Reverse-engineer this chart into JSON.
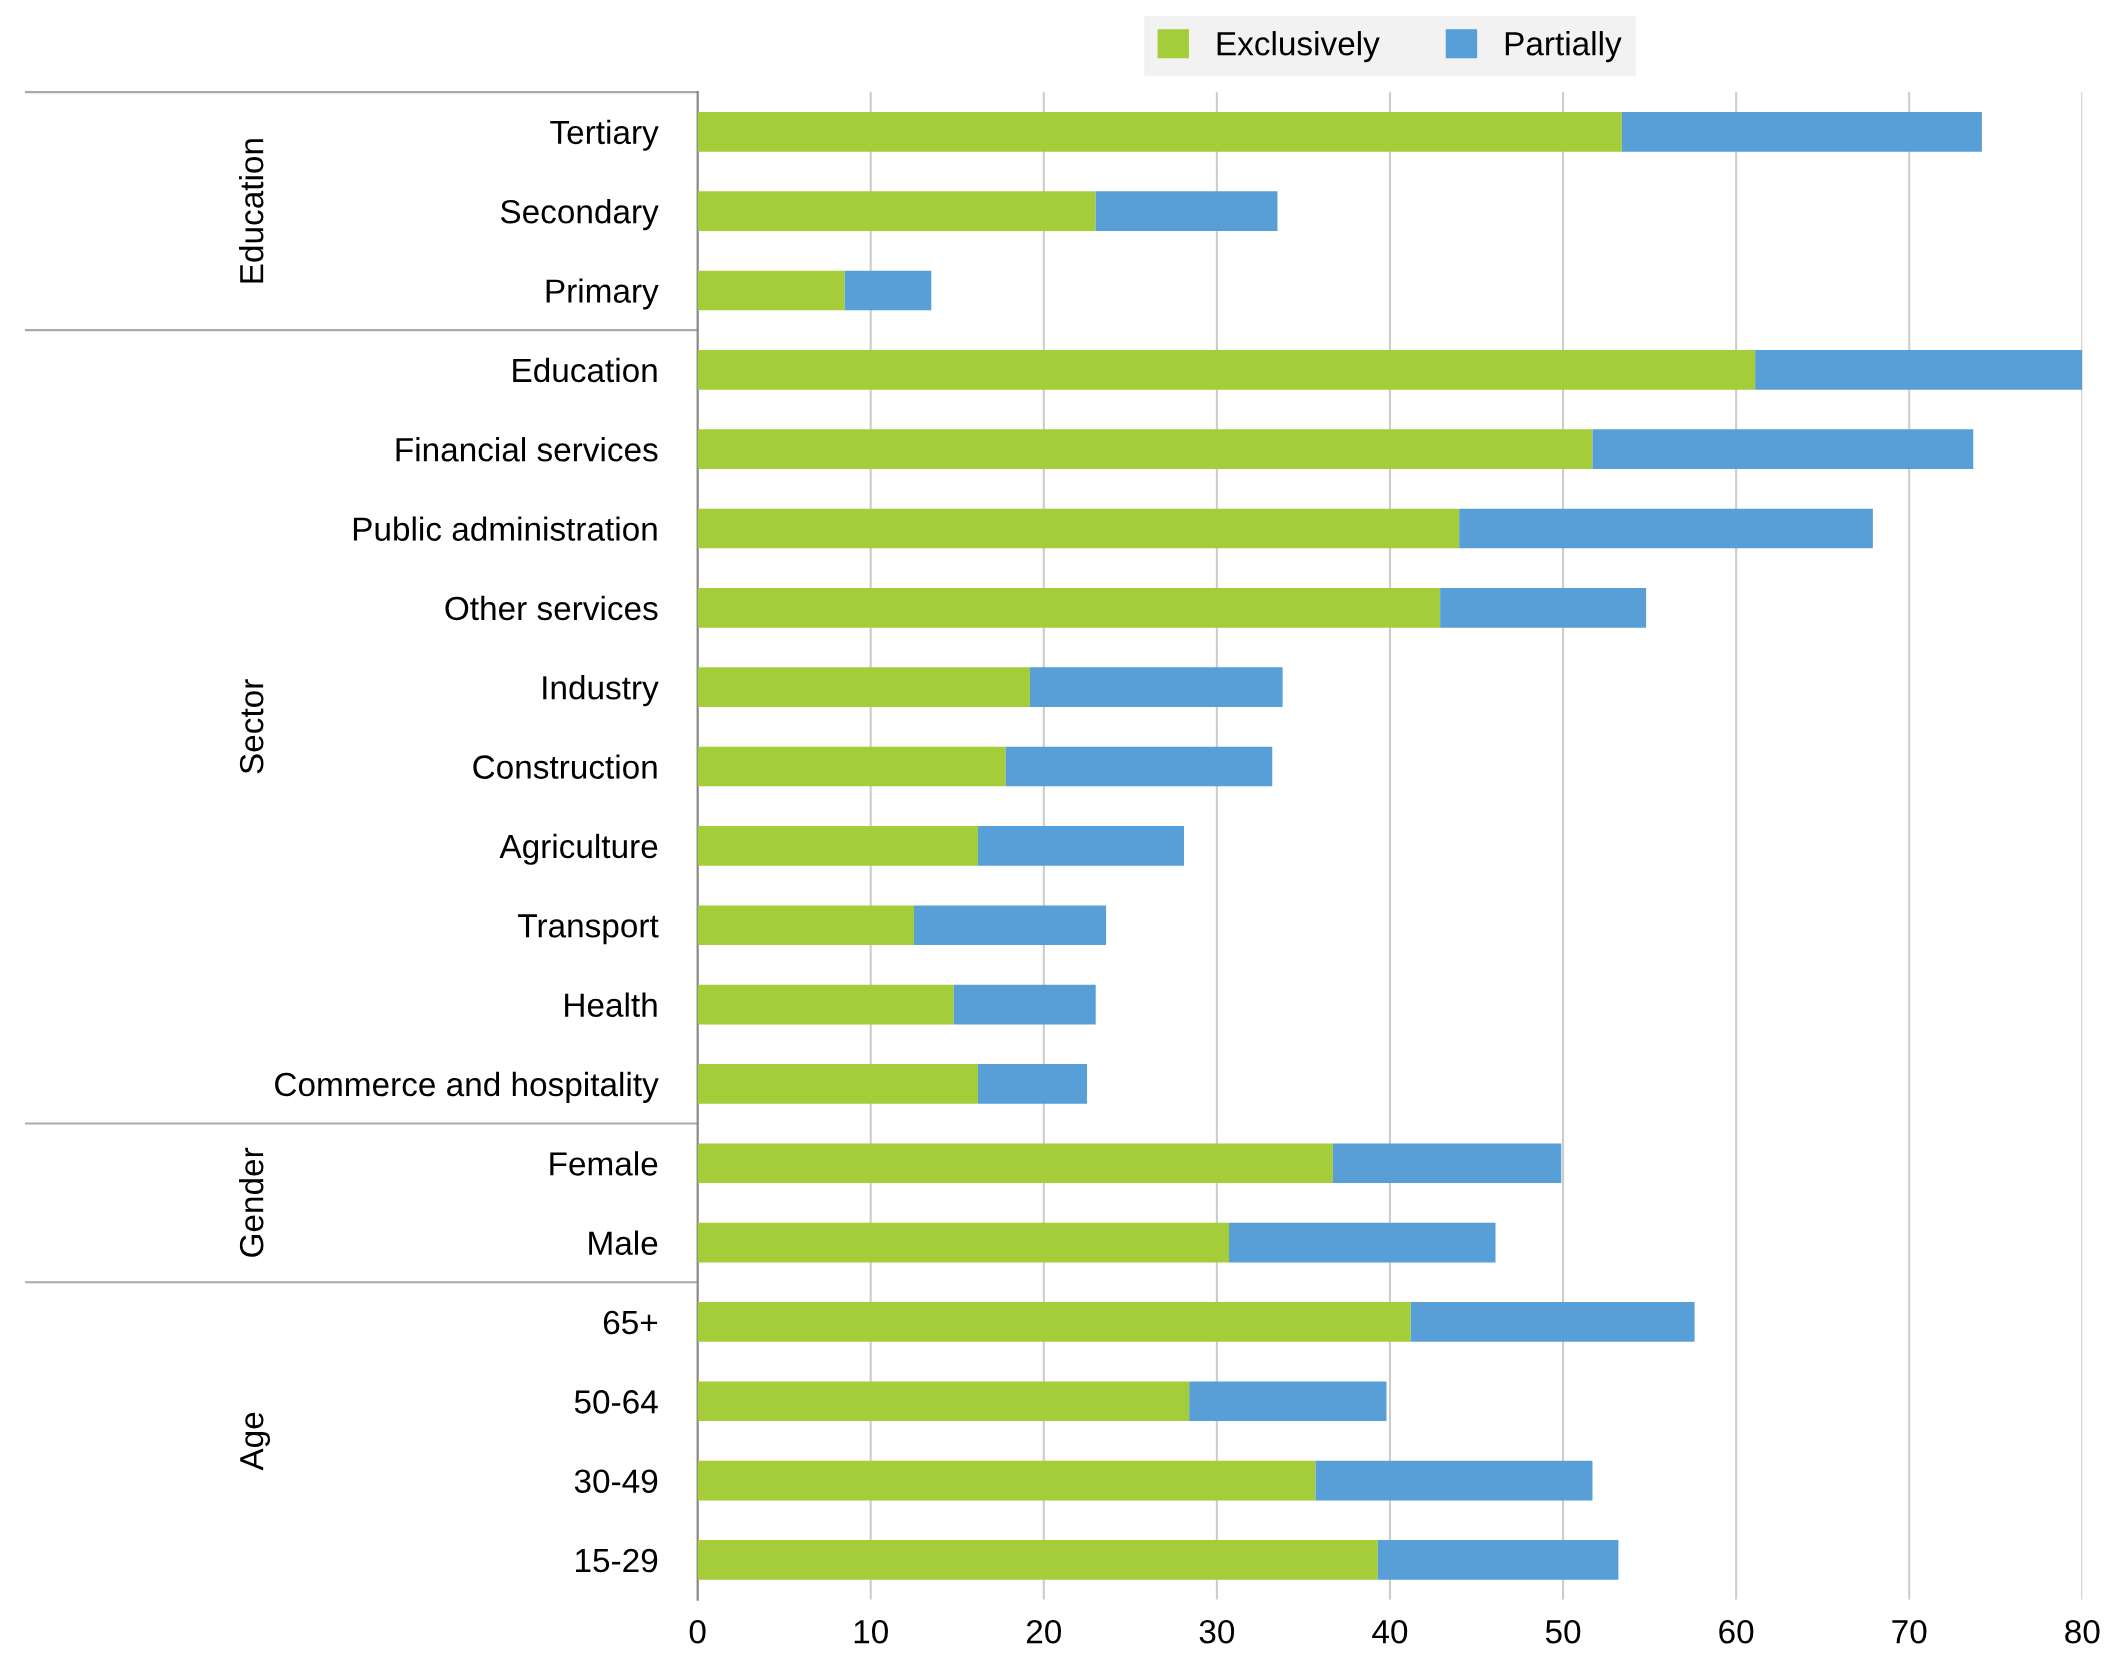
{
  "chart_data": {
    "type": "bar",
    "orientation": "horizontal",
    "stacked": true,
    "categories": [
      "Tertiary",
      "Secondary",
      "Primary",
      "Education",
      "Financial services",
      "Public administration",
      "Other services",
      "Industry",
      "Construction",
      "Agriculture",
      "Transport",
      "Health",
      "Commerce and hospitality",
      "Female",
      "Male",
      "65+",
      "50-64",
      "30-49",
      "15-29"
    ],
    "series": [
      {
        "name": "Exclusively",
        "color": "#a5cd39",
        "values": [
          53.4,
          23.0,
          8.5,
          61.1,
          51.7,
          44.0,
          42.9,
          19.2,
          17.8,
          16.2,
          12.5,
          14.8,
          16.2,
          36.7,
          30.7,
          41.2,
          28.4,
          35.7,
          39.3
        ]
      },
      {
        "name": "Partially",
        "color": "#579fd6",
        "values": [
          20.8,
          10.5,
          5.0,
          18.9,
          22.0,
          23.9,
          11.9,
          14.6,
          15.4,
          11.9,
          11.1,
          8.2,
          6.3,
          13.2,
          15.4,
          16.4,
          11.4,
          16.0,
          13.9
        ]
      }
    ],
    "xlim": [
      0,
      80
    ],
    "xticks": [
      0,
      10,
      20,
      30,
      40,
      50,
      60,
      70,
      80
    ],
    "grid": "x",
    "legend": "top",
    "annotations": [
      "Education",
      "Sector",
      "Gender",
      "Age"
    ]
  }
}
